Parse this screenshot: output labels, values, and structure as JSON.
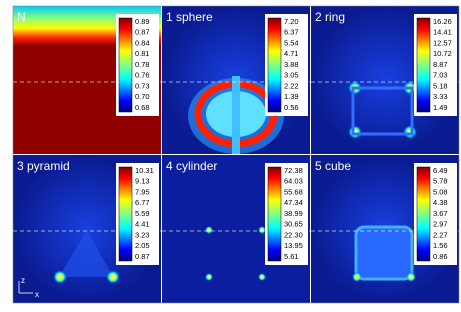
{
  "panels": [
    {
      "label": "N",
      "ticks": [
        "0.89",
        "0.87",
        "0.84",
        "0.81",
        "0.78",
        "0.76",
        "0.73",
        "0.70",
        "0.68"
      ]
    },
    {
      "label": "1 sphere",
      "ticks": [
        "7.20",
        "6.37",
        "5.54",
        "4.71",
        "3.88",
        "3.05",
        "2.22",
        "1.39",
        "0.56"
      ]
    },
    {
      "label": "2 ring",
      "ticks": [
        "16.26",
        "14.41",
        "12.57",
        "10.72",
        "8.87",
        "7.03",
        "5.18",
        "3.33",
        "1.49"
      ]
    },
    {
      "label": "3 pyramid",
      "ticks": [
        "10.31",
        "9.13",
        "7.95",
        "6.77",
        "5.59",
        "4.41",
        "3.23",
        "2.05",
        "0.87"
      ]
    },
    {
      "label": "4 cylinder",
      "ticks": [
        "72.38",
        "64.03",
        "55.68",
        "47.34",
        "38.99",
        "30.65",
        "22.30",
        "13.95",
        "5.61"
      ]
    },
    {
      "label": "5 cube",
      "ticks": [
        "6.49",
        "5.78",
        "5.08",
        "4.38",
        "3.67",
        "2.97",
        "2.27",
        "1.56",
        "0.86"
      ]
    }
  ],
  "axis_labels": [
    "z",
    "x"
  ]
}
